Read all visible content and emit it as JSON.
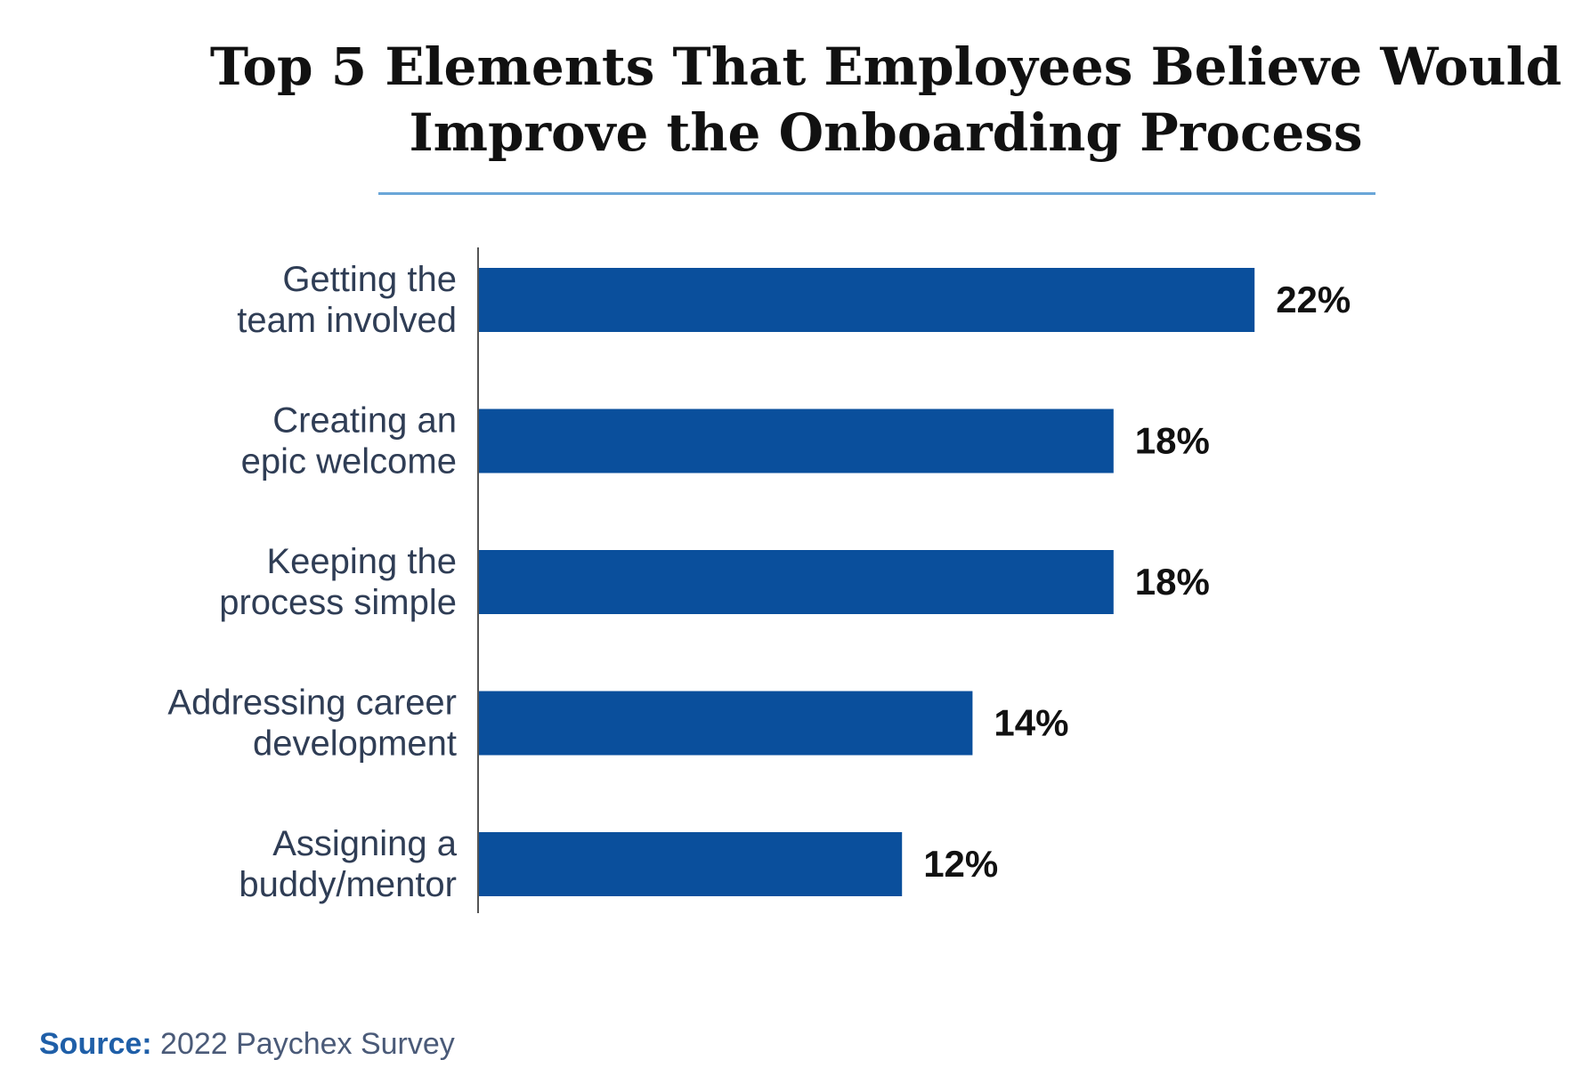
{
  "title_lines": [
    "Top 5 Elements That Employees Believe Would",
    "Improve the Onboarding Process"
  ],
  "source": {
    "label": "Source:",
    "text": " 2022 Paychex Survey"
  },
  "colors": {
    "bar": "#0a4f9c",
    "category_text": "#2f3d55",
    "value_text": "#111111",
    "axis": "#555555",
    "divider": "#6aa6d8",
    "source_label": "#1f5fa8"
  },
  "chart_data": {
    "type": "bar",
    "orientation": "horizontal",
    "categories": [
      [
        "Getting the",
        "team involved"
      ],
      [
        "Creating an",
        "epic welcome"
      ],
      [
        "Keeping the",
        "process simple"
      ],
      [
        "Addressing career",
        "development"
      ],
      [
        "Assigning a",
        "buddy/mentor"
      ]
    ],
    "values": [
      22,
      18,
      18,
      14,
      12
    ],
    "value_labels": [
      "22%",
      "18%",
      "18%",
      "14%",
      "12%"
    ],
    "unit": "%",
    "title": "Top 5 Elements That Employees Believe Would Improve the Onboarding Process",
    "xlabel": "",
    "ylabel": "",
    "grid": false,
    "legend": "none"
  }
}
